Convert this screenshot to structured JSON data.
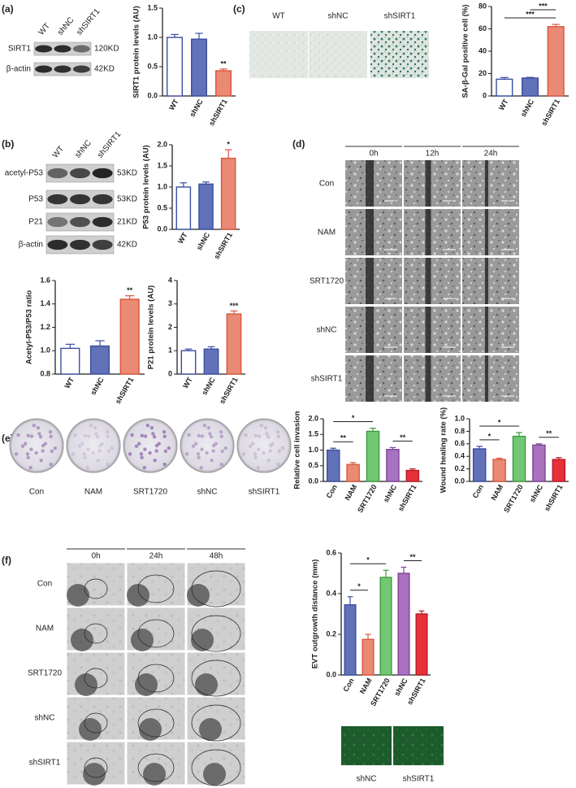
{
  "chart_data": [
    {
      "type": "bar",
      "ylabel": "SIRT1 protein levels (AU)",
      "categories": [
        "WT",
        "shNC",
        "shSIRT1"
      ],
      "values": [
        1.0,
        0.97,
        0.43
      ],
      "errors": [
        0.05,
        0.1,
        0.03
      ],
      "colors": [
        "#ffffff",
        "#6272b8",
        "#ea8a74"
      ],
      "edge_colors": [
        "#3a4ea0",
        "#3a4ea0",
        "#d9553d"
      ],
      "ylim": [
        0,
        1.5
      ],
      "yticks": [
        {
          "value": 0,
          "label": "0.0"
        },
        {
          "value": 0.5,
          "label": "0.5"
        },
        {
          "value": 1.0,
          "label": "1.0"
        },
        {
          "value": 1.5,
          "label": "1.5"
        }
      ],
      "significance": [
        null,
        null,
        "**"
      ]
    },
    {
      "type": "bar",
      "ylabel": "SA-β-Gal positive cell (%)",
      "categories": [
        "WT",
        "shNC",
        "shSIRT1"
      ],
      "values": [
        15,
        16,
        62
      ],
      "errors": [
        1.5,
        0.6,
        2
      ],
      "colors": [
        "#ffffff",
        "#6272b8",
        "#ea8a74"
      ],
      "edge_colors": [
        "#3a4ea0",
        "#3a4ea0",
        "#d9553d"
      ],
      "ylim": [
        0,
        80
      ],
      "yticks": [
        0,
        20,
        40,
        60,
        80
      ],
      "comparisons": [
        {
          "pair": [
            "WT",
            "shSIRT1"
          ],
          "label": "***"
        },
        {
          "pair": [
            "shNC",
            "shSIRT1"
          ],
          "label": "***"
        }
      ]
    },
    {
      "type": "bar",
      "ylabel": "P53 protein levels (AU)",
      "categories": [
        "WT",
        "shNC",
        "shSIRT1"
      ],
      "values": [
        1.0,
        1.07,
        1.68
      ],
      "errors": [
        0.1,
        0.05,
        0.2
      ],
      "colors": [
        "#ffffff",
        "#6272b8",
        "#ea8a74"
      ],
      "edge_colors": [
        "#3a4ea0",
        "#3a4ea0",
        "#d9553d"
      ],
      "ylim": [
        0,
        2.0
      ],
      "yticks": [
        {
          "value": 0,
          "label": "0.0"
        },
        {
          "value": 0.5,
          "label": "0.5"
        },
        {
          "value": 1.0,
          "label": "1.0"
        },
        {
          "value": 1.5,
          "label": "1.5"
        },
        {
          "value": 2.0,
          "label": "2.0"
        }
      ],
      "significance": [
        null,
        null,
        "*"
      ]
    },
    {
      "type": "bar",
      "ylabel": "Acetyl-P53/P53 ratio",
      "categories": [
        "WT",
        "shNC",
        "shSIRT1"
      ],
      "values": [
        1.02,
        1.04,
        1.44
      ],
      "errors": [
        0.035,
        0.045,
        0.03
      ],
      "colors": [
        "#ffffff",
        "#6272b8",
        "#ea8a74"
      ],
      "edge_colors": [
        "#3a4ea0",
        "#3a4ea0",
        "#d9553d"
      ],
      "ylim": [
        0.8,
        1.6
      ],
      "yticks": [
        {
          "value": 0.8,
          "label": "0.8"
        },
        {
          "value": 1.0,
          "label": "1.0"
        },
        {
          "value": 1.2,
          "label": "1.2"
        },
        {
          "value": 1.4,
          "label": "1.4"
        },
        {
          "value": 1.6,
          "label": "1.6"
        }
      ],
      "significance": [
        null,
        null,
        "**"
      ]
    },
    {
      "type": "bar",
      "ylabel": "P21 protein levels (AU)",
      "categories": [
        "WT",
        "shNC",
        "shSIRT1"
      ],
      "values": [
        1.0,
        1.07,
        2.57
      ],
      "errors": [
        0.07,
        0.1,
        0.13
      ],
      "colors": [
        "#ffffff",
        "#6272b8",
        "#ea8a74"
      ],
      "edge_colors": [
        "#3a4ea0",
        "#3a4ea0",
        "#d9553d"
      ],
      "ylim": [
        0,
        4
      ],
      "yticks": [
        0,
        1,
        2,
        3,
        4
      ],
      "significance": [
        null,
        null,
        "***"
      ]
    },
    {
      "type": "bar",
      "ylabel": "Relative cell invasion",
      "categories": [
        "Con",
        "NAM",
        "SRT1720",
        "shNC",
        "shSIRT1"
      ],
      "values": [
        1.0,
        0.54,
        1.6,
        1.02,
        0.35
      ],
      "errors": [
        0.06,
        0.06,
        0.1,
        0.06,
        0.05
      ],
      "colors": [
        "#6272b8",
        "#ea8a74",
        "#72c872",
        "#a972c0",
        "#e8303a"
      ],
      "edge_colors": [
        "#3a4ea0",
        "#d9553d",
        "#3f9a3f",
        "#7d4596",
        "#b51c25"
      ],
      "ylim": [
        0,
        2.0
      ],
      "yticks": [
        {
          "value": 0,
          "label": "0.0"
        },
        {
          "value": 0.5,
          "label": "0.5"
        },
        {
          "value": 1.0,
          "label": "1.0"
        },
        {
          "value": 1.5,
          "label": "1.5"
        },
        {
          "value": 2.0,
          "label": "2.0"
        }
      ],
      "comparisons": [
        {
          "pair": [
            "Con",
            "NAM"
          ],
          "label": "**"
        },
        {
          "pair": [
            "Con",
            "SRT1720"
          ],
          "label": "*"
        },
        {
          "pair": [
            "shNC",
            "shSIRT1"
          ],
          "label": "**"
        }
      ]
    },
    {
      "type": "bar",
      "ylabel": "Wound healing rate (%)",
      "categories": [
        "Con",
        "NAM",
        "SRT1720",
        "shNC",
        "shSIRT1"
      ],
      "values": [
        0.52,
        0.35,
        0.72,
        0.58,
        0.35
      ],
      "errors": [
        0.04,
        0.02,
        0.06,
        0.02,
        0.03
      ],
      "colors": [
        "#6272b8",
        "#ea8a74",
        "#72c872",
        "#a972c0",
        "#e8303a"
      ],
      "edge_colors": [
        "#3a4ea0",
        "#d9553d",
        "#3f9a3f",
        "#7d4596",
        "#b51c25"
      ],
      "ylim": [
        0,
        1.0
      ],
      "yticks": [
        {
          "value": 0,
          "label": "0.0"
        },
        {
          "value": 0.2,
          "label": "0.2"
        },
        {
          "value": 0.4,
          "label": "0.4"
        },
        {
          "value": 0.6,
          "label": "0.6"
        },
        {
          "value": 0.8,
          "label": "0.8"
        },
        {
          "value": 1.0,
          "label": "1.0"
        }
      ],
      "comparisons": [
        {
          "pair": [
            "Con",
            "NAM"
          ],
          "label": "*"
        },
        {
          "pair": [
            "Con",
            "SRT1720"
          ],
          "label": "*"
        },
        {
          "pair": [
            "shNC",
            "shSIRT1"
          ],
          "label": "**"
        }
      ]
    },
    {
      "type": "bar",
      "ylabel": "EVT outgrowth distance (mm)",
      "categories": [
        "Con",
        "NAM",
        "SRT1720",
        "shNC",
        "shSIRT1"
      ],
      "values": [
        0.345,
        0.175,
        0.48,
        0.5,
        0.3
      ],
      "errors": [
        0.04,
        0.025,
        0.035,
        0.03,
        0.015
      ],
      "colors": [
        "#6272b8",
        "#ea8a74",
        "#72c872",
        "#a972c0",
        "#e8303a"
      ],
      "edge_colors": [
        "#3a4ea0",
        "#d9553d",
        "#3f9a3f",
        "#7d4596",
        "#b51c25"
      ],
      "ylim": [
        0,
        0.6
      ],
      "yticks": [
        {
          "value": 0,
          "label": "0.0"
        },
        {
          "value": 0.2,
          "label": "0.2"
        },
        {
          "value": 0.4,
          "label": "0.4"
        },
        {
          "value": 0.6,
          "label": "0.6"
        }
      ],
      "comparisons": [
        {
          "pair": [
            "Con",
            "NAM"
          ],
          "label": "*"
        },
        {
          "pair": [
            "Con",
            "SRT1720"
          ],
          "label": "*"
        },
        {
          "pair": [
            "shNC",
            "shSIRT1"
          ],
          "label": "**"
        }
      ]
    }
  ],
  "figure": {
    "panels": [
      "(a)",
      "(b)",
      "(c)",
      "(d)",
      "(e)",
      "(f)"
    ],
    "blot_a": {
      "lanes": [
        "WT",
        "shNC",
        "shSIRT1"
      ],
      "rows": [
        {
          "protein": "SIRT1",
          "size": "120KD"
        },
        {
          "protein": "β-actin",
          "size": "42KD"
        }
      ]
    },
    "blot_b": {
      "lanes": [
        "WT",
        "shNC",
        "shSIRT1"
      ],
      "rows": [
        {
          "protein": "acetyl-P53",
          "size": "53KD"
        },
        {
          "protein": "P53",
          "size": "53KD"
        },
        {
          "protein": "P21",
          "size": "21KD"
        },
        {
          "protein": "β-actin",
          "size": "42KD"
        }
      ]
    },
    "sa_gal_images": [
      "WT",
      "shNC",
      "shSIRT1"
    ],
    "wound_images": {
      "times": [
        "0h",
        "12h",
        "24h"
      ],
      "groups": [
        "Con",
        "NAM",
        "SRT1720",
        "shNC",
        "shSIRT1"
      ]
    },
    "invasion_dishes": [
      "Con",
      "NAM",
      "SRT1720",
      "shNC",
      "shSIRT1"
    ],
    "evt_images": {
      "times": [
        "0h",
        "24h",
        "48h"
      ],
      "groups": [
        "Con",
        "NAM",
        "SRT1720",
        "shNC",
        "shSIRT1"
      ]
    },
    "fluorescence_images": [
      "shNC",
      "shSIRT1"
    ]
  }
}
